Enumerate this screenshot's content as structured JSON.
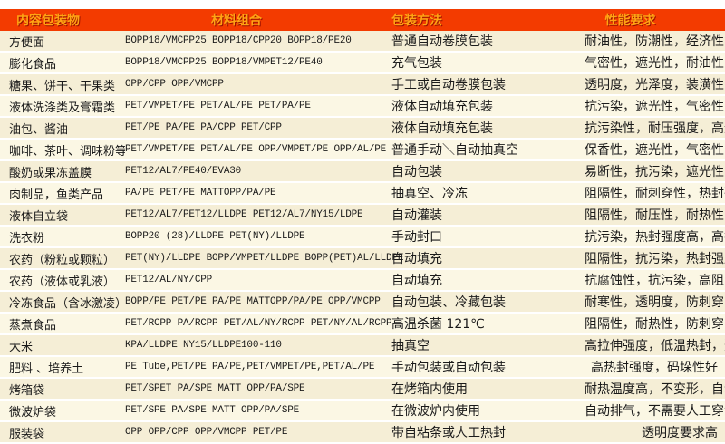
{
  "colors": {
    "header_bg": "#F33B00",
    "header_text": "#FFA413",
    "row_odd": "#F5EED6",
    "row_even": "#FBF7E4"
  },
  "table": {
    "headers": [
      "内容包装物",
      "材料组合",
      "包装方法",
      "性能要求"
    ],
    "rows": [
      {
        "item": "方便面",
        "materials": "BOPP18/VMCPP25  BOPP18/CPP20  BOPP18/PE20",
        "method": "普通自动卷膜包装",
        "performance": "耐油性，防潮性，经济性，高速包装"
      },
      {
        "item": "膨化食品",
        "materials": "BOPP18/VMCPP25  BOPP18/VMPET12/PE40",
        "method": "充气包装",
        "performance": "气密性，遮光性，耐油性"
      },
      {
        "item": "糖果、饼干、干果类",
        "materials": "OPP/CPP OPP/VMCPP",
        "method": "手工或自动卷膜包装",
        "performance": "透明度，光泽度，装潢性，经济性"
      },
      {
        "item": "液体洗涤类及膏霜类",
        "materials": "PET/VMPET/PE PET/AL/PE  PET/PA/PE",
        "method": "液体自动填充包装",
        "performance": "抗污染，遮光性，气密性，高强度"
      },
      {
        "item": "油包、酱油",
        "materials": "PET/PE  PA/PE PA/CPP PET/CPP",
        "method": "液体自动填充包装",
        "performance": "抗污染性，耐压强度，高速包装"
      },
      {
        "item": "咖啡、茶叶、调味粉等",
        "materials": "PET/VMPET/PE PET/AL/PE OPP/VMPET/PE OPP/AL/PE",
        "method": "普通手动＼自动抽真空",
        "performance": "保香性，遮光性，气密性，抗静电"
      },
      {
        "item": "酸奶或果冻盖膜",
        "materials": "PET12/AL7/PE40/EVA30",
        "method": "自动包装",
        "performance": "易断性，抗污染，遮光性，尺寸稳定"
      },
      {
        "item": "肉制品，鱼类产品",
        "materials": "PA/PE PET/PE MATTOPP/PA/PE",
        "method": "抽真空、冷冻",
        "performance": "阻隔性，耐刺穿性，热封强度，耐热性"
      },
      {
        "item": "液体自立袋",
        "materials": "PET12/AL7/PET12/LLDPE PET12/AL7/NY15/LDPE",
        "method": "自动灌装",
        "performance": "阻隔性，耐压性，耐热性，耐刺穿，抗污染"
      },
      {
        "item": "洗衣粉",
        "materials": "BOPP20 (28)/LLDPE PET(NY)/LLDPE",
        "method": "手动封口",
        "performance": "抗污染，热封强度高，高拉伸强度"
      },
      {
        "item": "农药（粉粒或颗粒）",
        "materials": "PET(NY)/LLDPE BOPP/VMPET/LLDPE BOPP(PET)AL/LLDPE",
        "method": "自动填充",
        "performance": "阻隔性，抗污染，热封强度"
      },
      {
        "item": "农药（液体或乳液）",
        "materials": "PET12/AL/NY/CPP",
        "method": "自动填充",
        "performance": "抗腐蚀性，抗污染，高阻隔，热封强度"
      },
      {
        "item": "冷冻食品（含冰激凌）",
        "materials": "BOPP/PE PET/PE PA/PE MATTOPP/PA/PE OPP/VMCPP",
        "method": "自动包装、冷藏包装",
        "performance": "耐寒性，透明度，防刺穿，遮光性"
      },
      {
        "item": "蒸煮食品",
        "materials": "PET/RCPP PA/RCPP PET/AL/NY/RCPP PET/NY/AL/RCPP",
        "method": "高温杀菌 121℃",
        "performance": "阻隔性，耐热性，防刺穿，遮光性"
      },
      {
        "item": "大米",
        "materials": "KPA/LLDPE NY15/LLDPE100-110",
        "method": "抽真空",
        "performance": "高拉伸强度，低温热封，透明度，手挽强度高"
      },
      {
        "item": "肥料 、培养土",
        "materials": "PE Tube,PET/PE  PA/PE,PET/VMPET/PE,PET/AL/PE",
        "method": "手动包装或自动包装",
        "performance": "高热封强度，码垛性好"
      },
      {
        "item": "烤箱袋",
        "materials": "PET/SPET PA/SPE MATT OPP/PA/SPE",
        "method": "在烤箱内使用",
        "performance": "耐热温度高，不变形，自动排气"
      },
      {
        "item": "微波炉袋",
        "materials": "PET/SPE PA/SPE MATT OPP/PA/SPE",
        "method": "在微波炉内使用",
        "performance": "自动排气，不需要人工穿洞"
      },
      {
        "item": "服装袋",
        "materials": "OPP  OPP/CPP OPP/VMCPP PET/PE",
        "method": "带自粘条或人工热封",
        "performance": "透明度要求高"
      }
    ]
  }
}
